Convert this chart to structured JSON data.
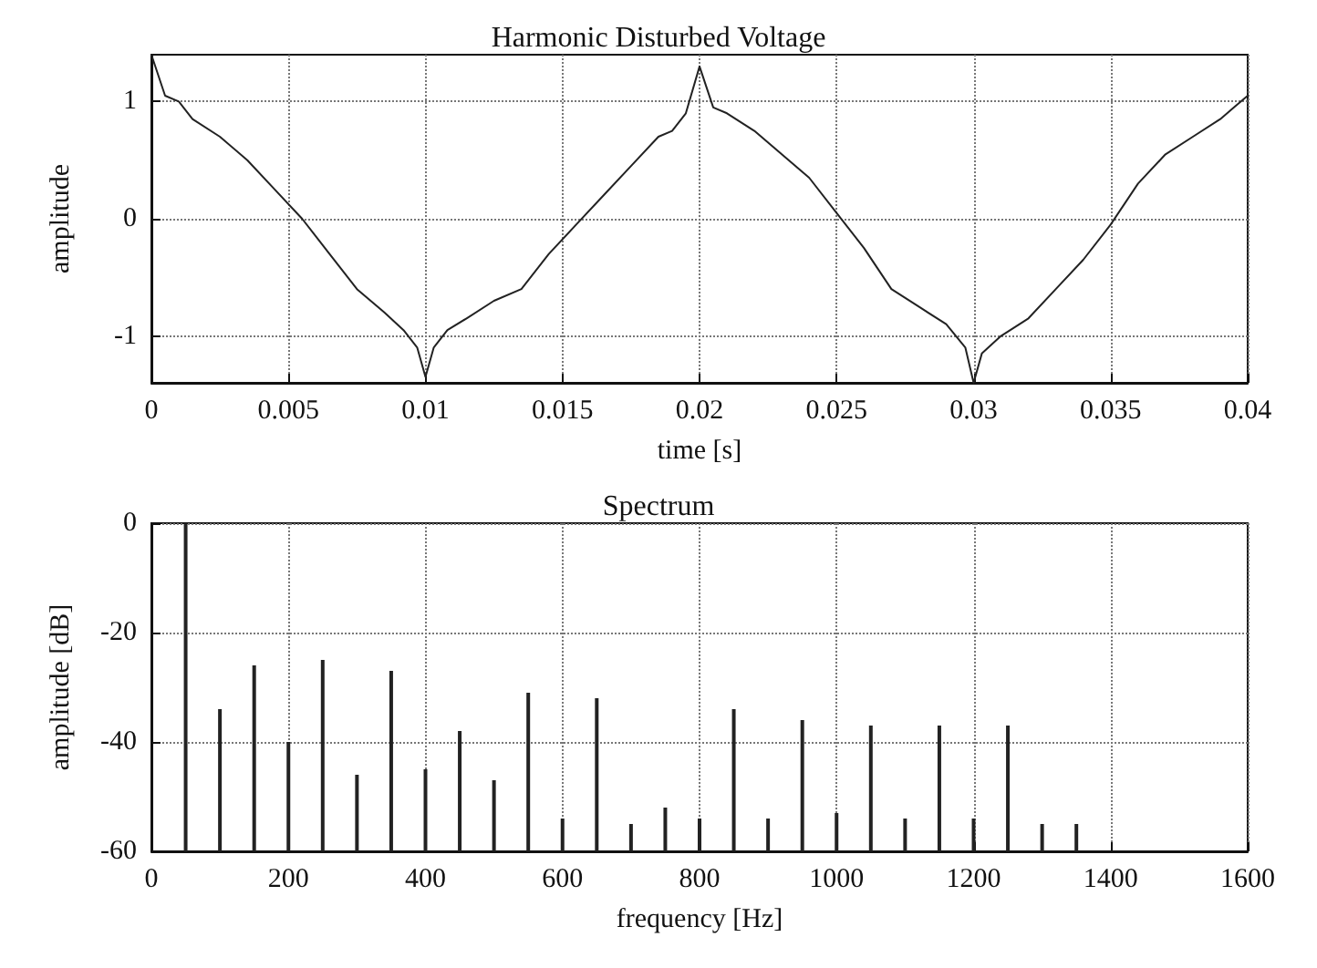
{
  "chart_data": [
    {
      "type": "line",
      "title": "Harmonic Disturbed Voltage",
      "xlabel": "time [s]",
      "ylabel": "amplitude",
      "xlim": [
        0,
        0.04
      ],
      "xticks": [
        0,
        0.005,
        0.01,
        0.015,
        0.02,
        0.025,
        0.03,
        0.035,
        0.04
      ],
      "ylim": [
        -1.4,
        1.4
      ],
      "yticks": [
        -1,
        0,
        1
      ],
      "grid": true,
      "marker": "none",
      "line_style": "solid",
      "series": [
        {
          "color": "#222222",
          "x": [
            0,
            0.0005,
            0.001,
            0.0015,
            0.0025,
            0.0035,
            0.0045,
            0.0055,
            0.0065,
            0.0075,
            0.0085,
            0.0092,
            0.0097,
            0.01,
            0.0103,
            0.0108,
            0.0115,
            0.0125,
            0.0135,
            0.0145,
            0.0155,
            0.0165,
            0.0175,
            0.0185,
            0.019,
            0.0195,
            0.02,
            0.0205,
            0.021,
            0.022,
            0.023,
            0.024,
            0.025,
            0.026,
            0.027,
            0.028,
            0.029,
            0.0297,
            0.03,
            0.0303,
            0.031,
            0.032,
            0.033,
            0.034,
            0.035,
            0.036,
            0.037,
            0.038,
            0.039,
            0.0395,
            0.04
          ],
          "values": [
            1.4,
            1.05,
            1.0,
            0.85,
            0.7,
            0.5,
            0.25,
            0.0,
            -0.3,
            -0.6,
            -0.8,
            -0.95,
            -1.1,
            -1.35,
            -1.1,
            -0.95,
            -0.85,
            -0.7,
            -0.6,
            -0.3,
            -0.05,
            0.2,
            0.45,
            0.7,
            0.75,
            0.9,
            1.3,
            0.95,
            0.9,
            0.75,
            0.55,
            0.35,
            0.05,
            -0.25,
            -0.6,
            -0.75,
            -0.9,
            -1.1,
            -1.4,
            -1.15,
            -1.0,
            -0.85,
            -0.6,
            -0.35,
            -0.05,
            0.3,
            0.55,
            0.7,
            0.85,
            0.95,
            1.05
          ]
        }
      ]
    },
    {
      "type": "bar",
      "title": "Spectrum",
      "xlabel": "frequency [Hz]",
      "ylabel": "amplitude [dB]",
      "xlim": [
        0,
        1600
      ],
      "xticks": [
        0,
        200,
        400,
        600,
        800,
        1000,
        1200,
        1400,
        1600
      ],
      "ylim": [
        -60,
        0
      ],
      "yticks": [
        -60,
        -40,
        -20,
        0
      ],
      "grid": true,
      "series": [
        {
          "color": "#222222",
          "x": [
            50,
            100,
            150,
            200,
            250,
            300,
            350,
            400,
            450,
            500,
            550,
            600,
            650,
            700,
            750,
            800,
            850,
            900,
            950,
            1000,
            1050,
            1100,
            1150,
            1200,
            1250,
            1300,
            1350
          ],
          "base": [
            -60,
            -60,
            -60,
            -60,
            -60,
            -60,
            -60,
            -60,
            -60,
            -60,
            -60,
            -60,
            -60,
            -60,
            -60,
            -60,
            -60,
            -60,
            -60,
            -60,
            -60,
            -60,
            -60,
            -60,
            -60,
            -60,
            -60
          ],
          "values": [
            60,
            26,
            34,
            20,
            35,
            14,
            33,
            15,
            22,
            13,
            29,
            6,
            28,
            5,
            8,
            6,
            26,
            6,
            24,
            7,
            23,
            6,
            23,
            6,
            23,
            5,
            5
          ]
        }
      ]
    }
  ]
}
